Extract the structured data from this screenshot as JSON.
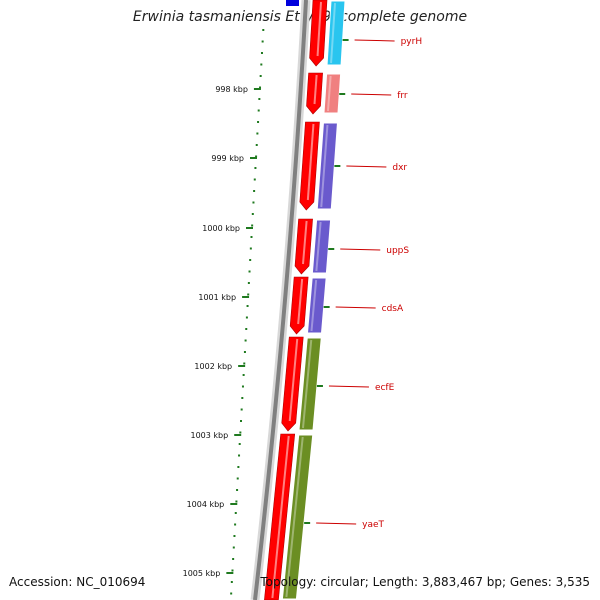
{
  "title": "Erwinia tasmaniensis Et1/99, complete genome",
  "accession": "Accession: NC_010694",
  "summary": "Topology: circular; Length: 3,883,467 bp; Genes: 3,535",
  "ticks": [
    "998 kbp",
    "999 kbp",
    "1000 kbp",
    "1001 kbp",
    "1002 kbp",
    "1003 kbp",
    "1004 kbp",
    "1005 kbp"
  ],
  "genes": [
    {
      "name": "pyrH",
      "color": "#29c5ef"
    },
    {
      "name": "frr",
      "color": "#f08080"
    },
    {
      "name": "dxr",
      "color": "#6a5acd"
    },
    {
      "name": "uppS",
      "color": "#6a5acd"
    },
    {
      "name": "cdsA",
      "color": "#6a5acd"
    },
    {
      "name": "ecfE",
      "color": "#6b8e23"
    },
    {
      "name": "yaeT",
      "color": "#6b8e23"
    }
  ],
  "colors": {
    "cds": "#ff0000",
    "tick": "#1f7a1f",
    "backbone": "#808080",
    "label": "#cc0000",
    "prev_gene": "#0000dd"
  }
}
